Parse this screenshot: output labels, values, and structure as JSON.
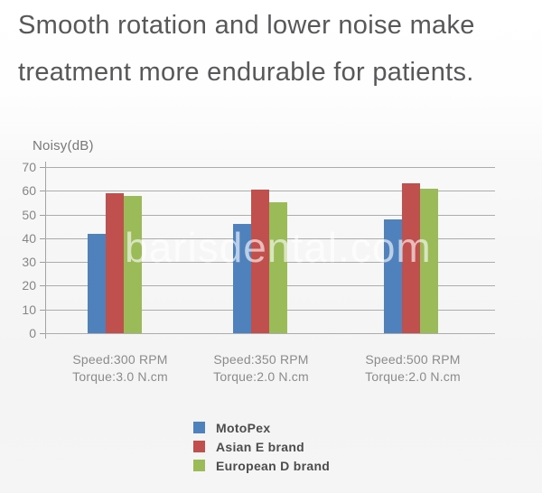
{
  "page": {
    "title_line1": "Smooth rotation and lower noise make",
    "title_line2": "treatment more endurable for patients.",
    "watermark": "barisdental.com"
  },
  "chart_data": {
    "type": "bar",
    "title": "Noisy(dB)",
    "ylabel": "Noisy(dB)",
    "xlabel": "",
    "ylim": [
      0,
      70
    ],
    "yticks": [
      0,
      10,
      20,
      30,
      40,
      50,
      60,
      70
    ],
    "grid": true,
    "legend_position": "bottom-center",
    "categories": [
      {
        "line1": "Speed:300 RPM",
        "line2": "Torque:3.0 N.cm"
      },
      {
        "line1": "Speed:350 RPM",
        "line2": "Torque:2.0 N.cm"
      },
      {
        "line1": "Speed:500 RPM",
        "line2": "Torque:2.0 N.cm"
      }
    ],
    "series": [
      {
        "name": "MotoPex",
        "color": "#4f81bd",
        "values": [
          42,
          46,
          48
        ]
      },
      {
        "name": "Asian E brand",
        "color": "#c0504d",
        "values": [
          59,
          60.5,
          63
        ]
      },
      {
        "name": "European D brand",
        "color": "#9bbb59",
        "values": [
          58,
          55,
          61
        ]
      }
    ]
  }
}
